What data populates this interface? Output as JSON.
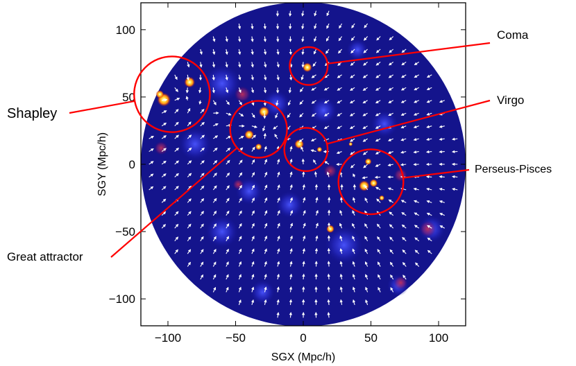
{
  "chart_data": {
    "type": "heatmap",
    "xlabel": "SGX (Mpc/h)",
    "ylabel": "SGY (Mpc/h)",
    "xlim": [
      -120,
      120
    ],
    "ylim": [
      -120,
      120
    ],
    "x_ticks": [
      -100,
      -50,
      0,
      50,
      100
    ],
    "y_ticks": [
      -100,
      -50,
      0,
      50,
      100
    ],
    "x_tick_labels": [
      "−100",
      "−50",
      "0",
      "50",
      "100"
    ],
    "y_tick_labels": [
      "−100",
      "−50",
      "0",
      "50",
      "100"
    ],
    "survey_radius": 120,
    "colors": {
      "background": "#000000",
      "field": "#1818b0",
      "hot": "#ffd84a",
      "arrows": "#ffffff",
      "annotation": "#ff0000"
    },
    "annotations": [
      {
        "label": "Shapley",
        "circle": {
          "x": -97,
          "y": 52,
          "r": 28
        }
      },
      {
        "label": "Coma",
        "circle": {
          "x": 4,
          "y": 73,
          "r": 14
        }
      },
      {
        "label": "Virgo",
        "circle": {
          "x": 2,
          "y": 11,
          "r": 16
        }
      },
      {
        "label": "Great attractor",
        "circle": {
          "x": -33,
          "y": 26,
          "r": 21
        }
      },
      {
        "label": "Perseus-Pisces",
        "circle": {
          "x": 50,
          "y": -13,
          "r": 24
        }
      }
    ]
  }
}
